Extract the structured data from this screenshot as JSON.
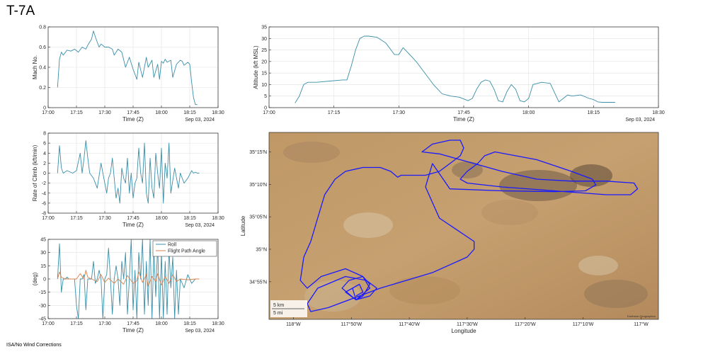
{
  "title": "T-7A",
  "footnote": "ISA/No Wind Corrections",
  "colors": {
    "teal": "#3a8fa8",
    "orange": "#d9804a",
    "track": "#1a1aff",
    "grid": "#e2e2e2"
  },
  "chart_data": [
    {
      "id": "mach",
      "type": "line",
      "xlabel": "Time (Z)",
      "ylabel": "Mach No.",
      "date_label": "Sep 03, 2024",
      "xlim": [
        "17:00",
        "18:30"
      ],
      "xticks": [
        "17:00",
        "17:15",
        "17:30",
        "17:45",
        "18:00",
        "18:15",
        "18:30"
      ],
      "ylim": [
        0,
        0.8
      ],
      "yticks": [
        "0",
        "0.2",
        "0.4",
        "0.6",
        "0.8"
      ],
      "grid": true,
      "series": [
        {
          "color": "teal",
          "x": [
            "17:05",
            "17:06",
            "17:07",
            "17:08",
            "17:10",
            "17:12",
            "17:14",
            "17:16",
            "17:18",
            "17:20",
            "17:21",
            "17:22",
            "17:23",
            "17:24",
            "17:25",
            "17:26",
            "17:27",
            "17:28",
            "17:30",
            "17:32",
            "17:34",
            "17:35",
            "17:37",
            "17:39",
            "17:41",
            "17:43",
            "17:45",
            "17:46",
            "17:47",
            "17:48",
            "17:50",
            "17:52",
            "17:53",
            "17:55",
            "17:56",
            "17:58",
            "17:59",
            "18:00",
            "18:01",
            "18:02",
            "18:03",
            "18:05",
            "18:06",
            "18:08",
            "18:10",
            "18:11",
            "18:12",
            "18:14",
            "18:15",
            "18:16",
            "18:17",
            "18:18",
            "18:19"
          ],
          "y": [
            0.2,
            0.48,
            0.55,
            0.52,
            0.57,
            0.56,
            0.58,
            0.55,
            0.6,
            0.58,
            0.62,
            0.65,
            0.68,
            0.76,
            0.7,
            0.65,
            0.6,
            0.63,
            0.6,
            0.6,
            0.58,
            0.52,
            0.58,
            0.55,
            0.4,
            0.5,
            0.38,
            0.33,
            0.28,
            0.45,
            0.3,
            0.5,
            0.4,
            0.47,
            0.3,
            0.43,
            0.28,
            0.46,
            0.44,
            0.48,
            0.45,
            0.47,
            0.3,
            0.43,
            0.47,
            0.46,
            0.42,
            0.45,
            0.43,
            0.25,
            0.1,
            0.03,
            0.03
          ]
        }
      ]
    },
    {
      "id": "altitude",
      "type": "line",
      "xlabel": "Time (Z)",
      "ylabel": "Altitude (kft MSL)",
      "date_label": "Sep 03, 2024",
      "xlim": [
        "17:00",
        "18:30"
      ],
      "xticks": [
        "17:00",
        "17:15",
        "17:30",
        "17:45",
        "18:00",
        "18:15",
        "18:30"
      ],
      "ylim": [
        0,
        35
      ],
      "yticks": [
        "0",
        "5",
        "10",
        "15",
        "20",
        "25",
        "30",
        "35"
      ],
      "grid": true,
      "series": [
        {
          "color": "teal",
          "x": [
            "17:06",
            "17:07",
            "17:08",
            "17:09",
            "17:11",
            "17:14",
            "17:17",
            "17:18",
            "17:19",
            "17:20",
            "17:21",
            "17:22",
            "17:23",
            "17:25",
            "17:27",
            "17:29",
            "17:30",
            "17:31",
            "17:32",
            "17:34",
            "17:36",
            "17:38",
            "17:40",
            "17:42",
            "17:44",
            "17:46",
            "17:47",
            "17:48",
            "17:49",
            "17:50",
            "17:51",
            "17:52",
            "17:53",
            "17:54",
            "17:55",
            "17:56",
            "17:57",
            "17:58",
            "17:59",
            "18:00",
            "18:01",
            "18:02",
            "18:03",
            "18:05",
            "18:07",
            "18:08",
            "18:09",
            "18:10",
            "18:12",
            "18:14",
            "18:15",
            "18:16",
            "18:17",
            "18:18",
            "18:20"
          ],
          "y": [
            2,
            5,
            10,
            11,
            11,
            11.5,
            12,
            12,
            18,
            25,
            30,
            31,
            31,
            30.5,
            28,
            23,
            23,
            26,
            24,
            20,
            15,
            10,
            6,
            5,
            4.5,
            3,
            4,
            8,
            11,
            12,
            11.5,
            8,
            3,
            2.5,
            7,
            10,
            8,
            3,
            2.5,
            4,
            10,
            10.5,
            11,
            10.5,
            2.5,
            4,
            5.5,
            5,
            5.5,
            4,
            3.5,
            2.5,
            2.3,
            2.3,
            2.3
          ]
        }
      ]
    },
    {
      "id": "roc",
      "type": "line",
      "xlabel": "Time (Z)",
      "ylabel": "Rate of Climb (kft/min)",
      "date_label": "Sep 03, 2024",
      "xlim": [
        "17:00",
        "18:30"
      ],
      "xticks": [
        "17:00",
        "17:15",
        "17:30",
        "17:45",
        "18:00",
        "18:15",
        "18:30"
      ],
      "ylim": [
        -8,
        8
      ],
      "yticks": [
        "-8",
        "-6",
        "-4",
        "-2",
        "0",
        "2",
        "4",
        "6",
        "8"
      ],
      "grid": true,
      "series": [
        {
          "color": "teal",
          "x": [
            "17:05",
            "17:06",
            "17:07",
            "17:08",
            "17:10",
            "17:13",
            "17:15",
            "17:17",
            "17:18",
            "17:19",
            "17:20",
            "17:21",
            "17:22",
            "17:23",
            "17:24",
            "17:26",
            "17:28",
            "17:29",
            "17:30",
            "17:31",
            "17:32",
            "17:33",
            "17:34",
            "17:35",
            "17:36",
            "17:37",
            "17:38",
            "17:39",
            "17:40",
            "17:41",
            "17:42",
            "17:43",
            "17:44",
            "17:45",
            "17:46",
            "17:47",
            "17:48",
            "17:49",
            "17:50",
            "17:51",
            "17:52",
            "17:53",
            "17:54",
            "17:55",
            "17:56",
            "17:57",
            "17:58",
            "17:59",
            "18:00",
            "18:01",
            "18:02",
            "18:03",
            "18:04",
            "18:05",
            "18:07",
            "18:09",
            "18:10",
            "18:12",
            "18:14",
            "18:16",
            "18:17",
            "18:18",
            "18:19",
            "18:20"
          ],
          "y": [
            0,
            5.5,
            1,
            0,
            0.5,
            0,
            0.5,
            4,
            0,
            3,
            6.5,
            3,
            0,
            -0.5,
            -1,
            -3,
            2,
            0,
            -2,
            -4,
            -1,
            0,
            3,
            -1,
            -5,
            -3,
            -6,
            1,
            -1,
            -2,
            3,
            -4,
            0,
            -5,
            -2,
            -1,
            5,
            0,
            -2,
            6,
            -4,
            -6,
            3,
            -3,
            -5,
            4,
            0,
            -3,
            5,
            -6,
            2,
            -1,
            6,
            -4,
            1,
            -3,
            0,
            -2,
            -1,
            0.5,
            0,
            0.2,
            0,
            0
          ]
        }
      ]
    },
    {
      "id": "attitude",
      "type": "line",
      "xlabel": "Time (Z)",
      "ylabel": "(deg)",
      "date_label": "Sep 03, 2024",
      "xlim": [
        "17:00",
        "18:30"
      ],
      "xticks": [
        "17:00",
        "17:15",
        "17:30",
        "17:45",
        "18:00",
        "18:15",
        "18:30"
      ],
      "ylim": [
        -45,
        45
      ],
      "yticks": [
        "-45",
        "-30",
        "-15",
        "0",
        "15",
        "30",
        "45"
      ],
      "grid": true,
      "legend": "top-right",
      "series": [
        {
          "name": "Roll",
          "color": "teal",
          "x": [
            "17:05",
            "17:06",
            "17:07",
            "17:08",
            "17:09",
            "17:10",
            "17:11",
            "17:12",
            "17:13",
            "17:14",
            "17:15",
            "17:16",
            "17:17",
            "17:18",
            "17:19",
            "17:20",
            "17:21",
            "17:22",
            "17:23",
            "17:24",
            "17:25",
            "17:26",
            "17:27",
            "17:28",
            "17:29",
            "17:30",
            "17:31",
            "17:32",
            "17:33",
            "17:34",
            "17:35",
            "17:36",
            "17:37",
            "17:38",
            "17:39",
            "17:40",
            "17:41",
            "17:42",
            "17:43",
            "17:44",
            "17:45",
            "17:46",
            "17:47",
            "17:48",
            "17:49",
            "17:50",
            "17:51",
            "17:52",
            "17:53",
            "17:54",
            "17:55",
            "17:56",
            "17:57",
            "17:58",
            "17:59",
            "18:00",
            "18:01",
            "18:02",
            "18:03",
            "18:04",
            "18:05",
            "18:06",
            "18:07",
            "18:08",
            "18:09",
            "18:10",
            "18:12",
            "18:14",
            "18:16",
            "18:18",
            "18:20"
          ],
          "y": [
            0,
            40,
            -15,
            0,
            0,
            2,
            0,
            0,
            0,
            0,
            -30,
            -45,
            0,
            0,
            5,
            -35,
            0,
            0,
            0,
            20,
            -5,
            0,
            10,
            0,
            -45,
            0,
            5,
            35,
            0,
            -40,
            0,
            15,
            0,
            -30,
            20,
            0,
            30,
            -40,
            0,
            45,
            -35,
            10,
            -45,
            30,
            0,
            45,
            -40,
            20,
            -30,
            45,
            -45,
            35,
            -20,
            40,
            -45,
            30,
            -45,
            20,
            -40,
            35,
            -10,
            25,
            -45,
            10,
            -40,
            0,
            -10,
            5,
            -5,
            0,
            0
          ]
        },
        {
          "name": "Flight Path Angle",
          "color": "orange",
          "x": [
            "17:05",
            "17:06",
            "17:07",
            "17:09",
            "17:11",
            "17:15",
            "17:17",
            "17:19",
            "17:20",
            "17:21",
            "17:23",
            "17:26",
            "17:28",
            "17:30",
            "17:32",
            "17:35",
            "17:37",
            "17:40",
            "17:42",
            "17:45",
            "17:47",
            "17:48",
            "17:50",
            "17:52",
            "17:53",
            "17:55",
            "17:57",
            "17:58",
            "18:00",
            "18:02",
            "18:04",
            "18:06",
            "18:08",
            "18:10",
            "18:14",
            "18:18",
            "18:20"
          ],
          "y": [
            0,
            8,
            2,
            0,
            0,
            0,
            6,
            0,
            10,
            2,
            0,
            -3,
            5,
            -4,
            1,
            -5,
            0,
            -6,
            4,
            -5,
            -2,
            8,
            -4,
            5,
            -8,
            3,
            -3,
            6,
            -7,
            3,
            -5,
            5,
            -3,
            0,
            -1,
            0,
            0
          ]
        }
      ]
    },
    {
      "id": "track",
      "type": "line",
      "xlabel": "Longitude",
      "ylabel": "Latitude",
      "xlim": [
        -118.07,
        -116.95
      ],
      "ylim": [
        34.82,
        35.3
      ],
      "xticks": [
        "118°W",
        "117°50'W",
        "117°40'W",
        "117°30'W",
        "117°20'W",
        "117°10'W",
        "117°W"
      ],
      "xtick_values": [
        -118.0,
        -117.8333,
        -117.6667,
        -117.5,
        -117.3333,
        -117.1667,
        -117.0
      ],
      "yticks": [
        "34°55'N",
        "35°N",
        "35°05'N",
        "35°10'N",
        "35°15'N"
      ],
      "ytick_values": [
        34.9167,
        35.0,
        35.0833,
        35.1667,
        35.25
      ],
      "scale_labels": [
        "5 km",
        "5 mi"
      ],
      "attribution": "Earthstar Geographics",
      "series": [
        {
          "color": "track",
          "x": [
            -117.83,
            -117.82,
            -117.8,
            -117.78,
            -117.8,
            -117.85,
            -117.92,
            -117.96,
            -117.98,
            -117.97,
            -117.95,
            -117.93,
            -117.91,
            -117.88,
            -117.85,
            -117.8,
            -117.75,
            -117.72,
            -117.7,
            -117.69,
            -117.62,
            -117.58,
            -117.55,
            -117.52,
            -117.51,
            -117.52,
            -117.55,
            -117.6,
            -117.63,
            -117.58,
            -117.5,
            -117.4,
            -117.3,
            -117.2,
            -117.1,
            -117.02,
            -117.01,
            -117.03,
            -117.1,
            -117.25,
            -117.4,
            -117.5,
            -117.52,
            -117.5,
            -117.47,
            -117.45,
            -117.42,
            -117.3,
            -117.2,
            -117.14,
            -117.13,
            -117.16,
            -117.25,
            -117.4,
            -117.55,
            -117.6,
            -117.62,
            -117.58,
            -117.48,
            -117.48,
            -117.5,
            -117.6,
            -117.75,
            -117.9,
            -117.95,
            -117.96,
            -117.93,
            -117.85,
            -117.79,
            -117.76,
            -117.78,
            -117.82,
            -117.86,
            -117.84,
            -117.8,
            -117.78,
            -117.82,
            -117.85,
            -117.81,
            -117.8,
            -117.82
          ],
          "y": [
            34.9,
            34.87,
            34.88,
            34.91,
            34.93,
            34.95,
            34.93,
            34.9,
            34.92,
            34.98,
            35.02,
            35.08,
            35.14,
            35.18,
            35.2,
            35.21,
            35.21,
            35.2,
            35.185,
            35.19,
            35.19,
            35.2,
            35.22,
            35.24,
            35.26,
            35.28,
            35.28,
            35.27,
            35.25,
            35.245,
            35.225,
            35.2,
            35.18,
            35.175,
            35.175,
            35.17,
            35.155,
            35.14,
            35.14,
            35.15,
            35.16,
            35.17,
            35.18,
            35.2,
            35.22,
            35.24,
            35.25,
            35.23,
            35.2,
            35.18,
            35.165,
            35.15,
            35.148,
            35.15,
            35.155,
            35.22,
            35.16,
            35.08,
            35.02,
            35.0,
            34.98,
            34.94,
            34.9,
            34.85,
            34.84,
            34.86,
            34.9,
            34.93,
            34.92,
            34.9,
            34.88,
            34.87,
            34.9,
            34.92,
            34.93,
            34.9,
            34.87,
            34.89,
            34.91,
            34.89,
            34.88
          ]
        }
      ]
    }
  ]
}
